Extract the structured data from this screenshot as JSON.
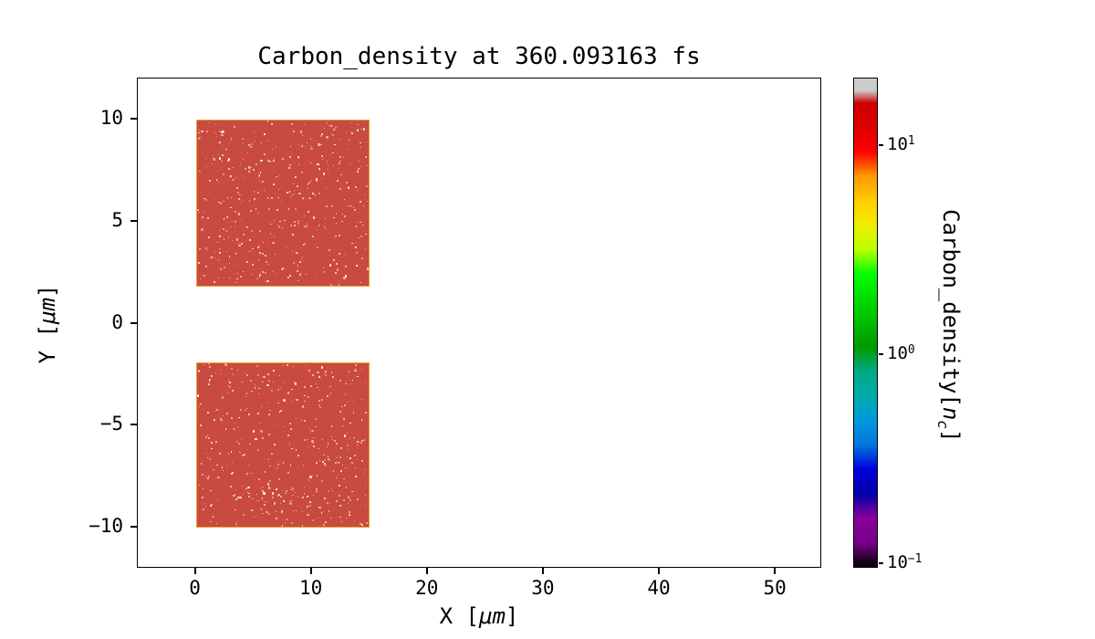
{
  "chart_data": {
    "type": "heatmap",
    "title": "Carbon_density at 360.093163 fs",
    "xlabel": {
      "prefix": "X [",
      "unit": "μm",
      "suffix": "]"
    },
    "ylabel": {
      "prefix": "Y [",
      "unit": "μm",
      "suffix": "]"
    },
    "xlim": [
      -5,
      54
    ],
    "ylim": [
      -12,
      12
    ],
    "grid": false,
    "x_ticks": [
      {
        "value": 0,
        "label": "0"
      },
      {
        "value": 10,
        "label": "10"
      },
      {
        "value": 20,
        "label": "20"
      },
      {
        "value": 30,
        "label": "30"
      },
      {
        "value": 40,
        "label": "40"
      },
      {
        "value": 50,
        "label": "50"
      }
    ],
    "y_ticks": [
      {
        "value": 10,
        "label": "10"
      },
      {
        "value": 5,
        "label": "5"
      },
      {
        "value": 0,
        "label": "0"
      },
      {
        "value": -5,
        "label": "−5"
      },
      {
        "value": -10,
        "label": "−10"
      }
    ],
    "plasma_blocks": [
      {
        "x0": 0,
        "x1": 15,
        "y0": 1.8,
        "y1": 10,
        "density_nc": 10
      },
      {
        "x0": 0,
        "x1": 15,
        "y0": -10,
        "y1": -1.9,
        "density_nc": 10
      }
    ],
    "colorbar": {
      "label": {
        "prefix": "Carbon_density[",
        "var": "n",
        "sub": "c",
        "suffix": "]"
      },
      "scale": "log",
      "vmin": 0.095,
      "vmax": 21,
      "colormap": "nipy_spectral",
      "ticks": [
        {
          "value": 10,
          "base": "10",
          "exp": "1"
        },
        {
          "value": 1,
          "base": "10",
          "exp": "0"
        },
        {
          "value": 0.1,
          "base": "10",
          "exp": "−1"
        }
      ]
    },
    "colors": {
      "block_fill": "#c94b40",
      "block_edge": "#e2a42c",
      "speckle": "#ffffff",
      "axes_edge": "#000000",
      "background": "#ffffff"
    }
  }
}
